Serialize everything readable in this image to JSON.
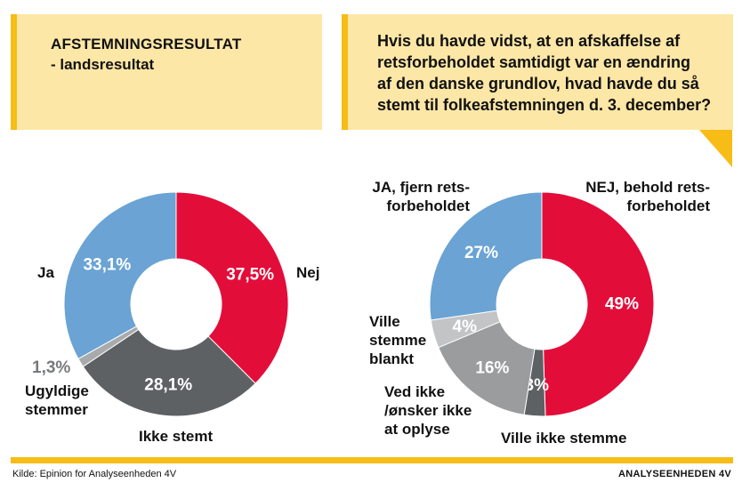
{
  "left_box": {
    "title": "AFSTEMNINGSRESULTAT",
    "subtitle": "- landsresultat"
  },
  "right_box": {
    "question_lines": [
      "Hvis du havde vidst, at en afskaffelse af",
      "retsforbeholdet samtidigt var en ændring",
      "af den danske grundlov, hvad havde du så",
      "stemt til folkeafstemningen d. 3. december?"
    ]
  },
  "chart_data": [
    {
      "type": "pie",
      "title": "AFSTEMNINGSRESULTAT - landsresultat",
      "slices": [
        {
          "name": "Nej",
          "value": 37.5,
          "value_label": "37,5%",
          "color": "#e30d3a",
          "label_lines": [
            "Nej"
          ]
        },
        {
          "name": "Ikke stemt",
          "value": 28.1,
          "value_label": "28,1%",
          "color": "#5d6163",
          "label_lines": [
            "Ikke stemt"
          ]
        },
        {
          "name": "Ugyldige stemmer",
          "value": 1.3,
          "value_label": "1,3%",
          "color": "#a8aaab",
          "label_lines": [
            "Ugyldige",
            "stemmer"
          ]
        },
        {
          "name": "Ja",
          "value": 33.1,
          "value_label": "33,1%",
          "color": "#6aa3d4",
          "label_lines": [
            "Ja"
          ]
        }
      ]
    },
    {
      "type": "pie",
      "title": "Hvis du havde vidst, at en afskaffelse af retsforbeholdet samtidigt var en ændring af den danske grundlov, hvad havde du så stemt til folkeafstemningen d. 3. december?",
      "slices": [
        {
          "name": "NEJ, behold retsforbeholdet",
          "value": 49,
          "value_label": "49%",
          "color": "#e30d3a",
          "label_lines": [
            "NEJ, behold rets-",
            "forbeholdet"
          ]
        },
        {
          "name": "Ville ikke stemme",
          "value": 3,
          "value_label": "3%",
          "color": "#5d6163",
          "label_lines": [
            "Ville ikke stemme"
          ]
        },
        {
          "name": "Ved ikke /ønsker ikke at oplyse",
          "value": 16,
          "value_label": "16%",
          "color": "#9a9c9d",
          "label_lines": [
            "Ved ikke",
            "/ønsker ikke",
            "at oplyse"
          ]
        },
        {
          "name": "Ville stemme blankt",
          "value": 4,
          "value_label": "4%",
          "color": "#c2c4c5",
          "label_lines": [
            "Ville",
            "stemme",
            "blankt"
          ]
        },
        {
          "name": "JA, fjern retsforbeholdet",
          "value": 27,
          "value_label": "27%",
          "color": "#6aa3d4",
          "label_lines": [
            "JA, fjern rets-",
            "forbeholdet"
          ]
        }
      ]
    }
  ],
  "footer": {
    "source": "Kilde: Epinion for Analyseenheden 4V",
    "brand": "ANALYSEENHEDEN 4V"
  }
}
